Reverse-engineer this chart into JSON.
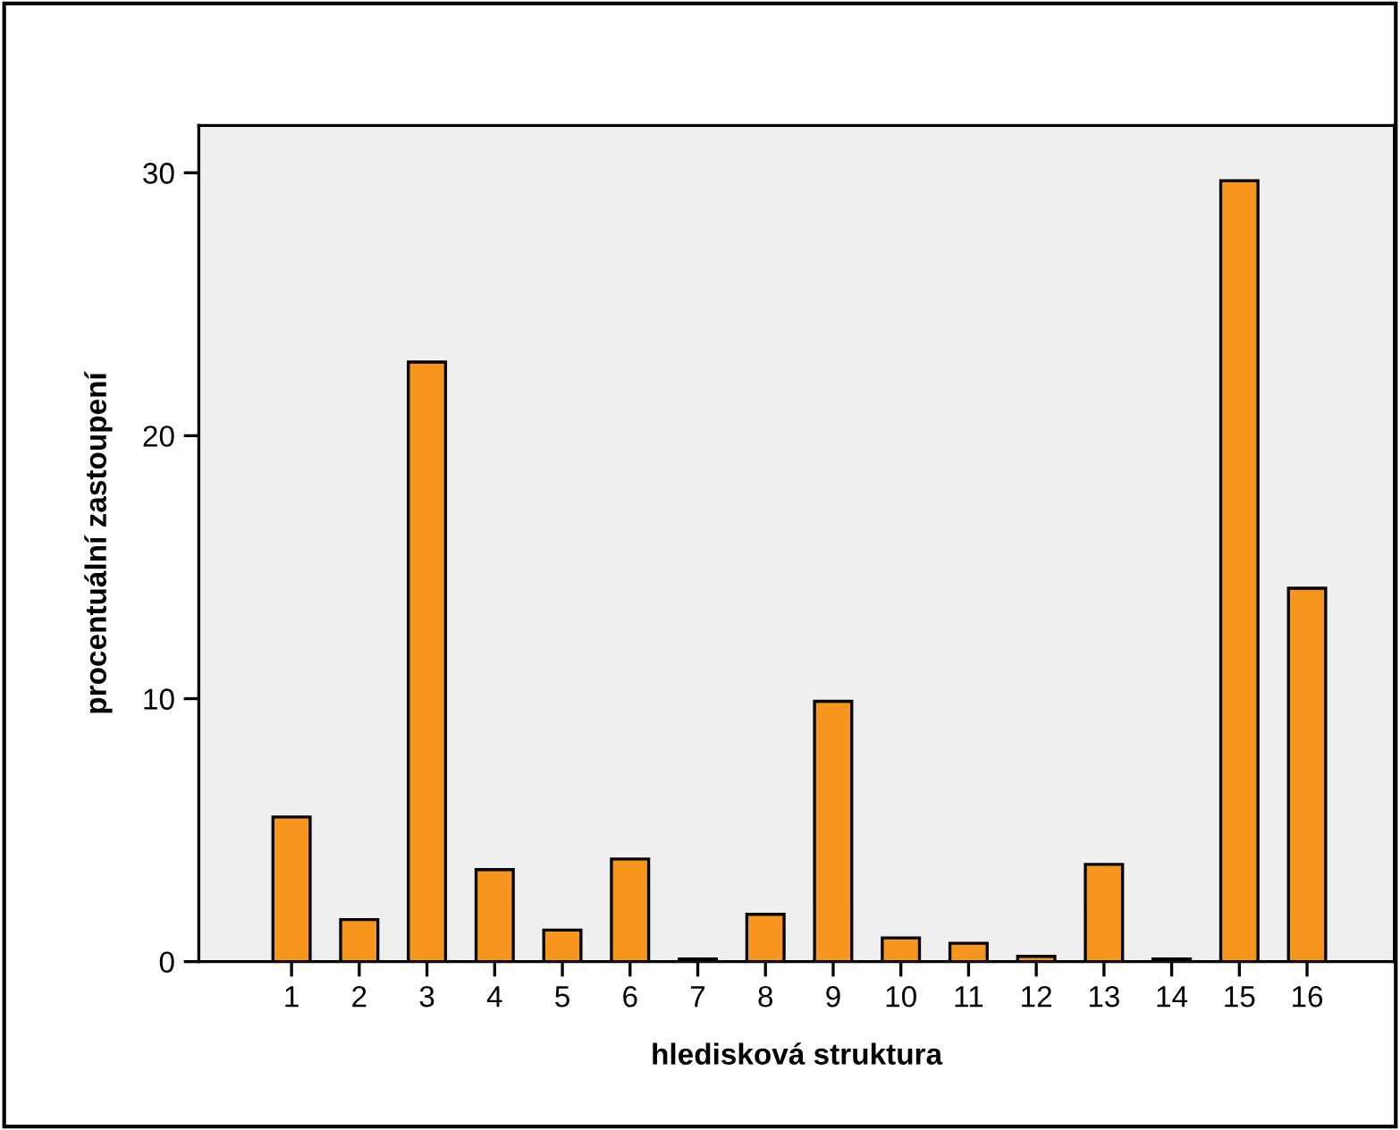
{
  "chart_data": {
    "type": "bar",
    "xlabel": "hledisková struktura",
    "ylabel": "procentuální zastoupení",
    "categories": [
      "1",
      "2",
      "3",
      "4",
      "5",
      "6",
      "7",
      "8",
      "9",
      "10",
      "11",
      "12",
      "13",
      "14",
      "15",
      "16"
    ],
    "values": [
      5.5,
      1.6,
      22.8,
      3.5,
      1.2,
      3.9,
      0.1,
      1.8,
      9.9,
      0.9,
      0.7,
      0.2,
      3.7,
      0.1,
      29.7,
      14.2
    ],
    "color": "#f7961e",
    "ylim": [
      0,
      31.8
    ],
    "yticks": [
      0,
      10,
      20,
      30
    ],
    "grid": false,
    "legend": false
  }
}
